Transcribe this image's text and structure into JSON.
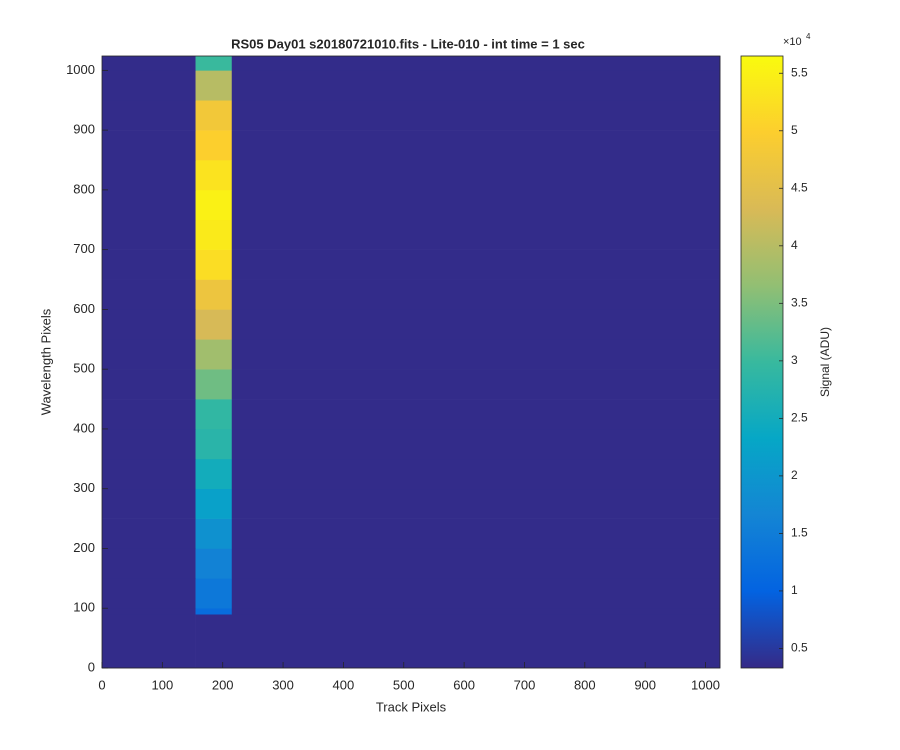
{
  "chart_data": {
    "type": "heatmap",
    "title": "RS05 Day01  s20180721010.fits - Lite-010 - int time = 1 sec",
    "x_label": "Track Pixels",
    "y_label": "Wavelength Pixels",
    "colorbar_label": "Signal (ADU)",
    "colorbar_multiplier": "×10",
    "colorbar_exponent": "4",
    "colormap": "parula",
    "x_edges": [
      0,
      155,
      215,
      1024
    ],
    "y_edges": [
      0,
      90,
      100,
      150,
      200,
      250,
      300,
      350,
      400,
      450,
      500,
      550,
      600,
      650,
      700,
      750,
      800,
      850,
      900,
      950,
      1000,
      1024
    ],
    "values": [
      [
        0.35,
        0.35,
        0.35
      ],
      [
        0.35,
        1.2,
        0.35
      ],
      [
        0.35,
        1.4,
        0.35
      ],
      [
        0.35,
        1.6,
        0.35
      ],
      [
        0.35,
        1.9,
        0.35
      ],
      [
        0.35,
        2.2,
        0.35
      ],
      [
        0.35,
        2.5,
        0.35
      ],
      [
        0.35,
        2.8,
        0.35
      ],
      [
        0.35,
        2.9,
        0.35
      ],
      [
        0.35,
        3.4,
        0.35
      ],
      [
        0.35,
        3.8,
        0.35
      ],
      [
        0.35,
        4.3,
        0.35
      ],
      [
        0.35,
        4.7,
        0.35
      ],
      [
        0.35,
        5.2,
        0.35
      ],
      [
        0.35,
        5.4,
        0.35
      ],
      [
        0.35,
        5.5,
        0.35
      ],
      [
        0.35,
        5.3,
        0.35
      ],
      [
        0.35,
        5.0,
        0.35
      ],
      [
        0.35,
        4.8,
        0.35
      ],
      [
        0.35,
        4.0,
        0.35
      ],
      [
        0.35,
        3.0,
        0.35
      ]
    ],
    "xlim": [
      0,
      1024
    ],
    "ylim": [
      0,
      1024
    ],
    "xticks": [
      0,
      100,
      200,
      300,
      400,
      500,
      600,
      700,
      800,
      900,
      1000
    ],
    "yticks": [
      0,
      100,
      200,
      300,
      400,
      500,
      600,
      700,
      800,
      900,
      1000
    ],
    "clim": [
      0.33,
      5.65
    ],
    "cticks": [
      0.5,
      1,
      1.5,
      2,
      2.5,
      3,
      3.5,
      4,
      4.5,
      5,
      5.5
    ]
  }
}
